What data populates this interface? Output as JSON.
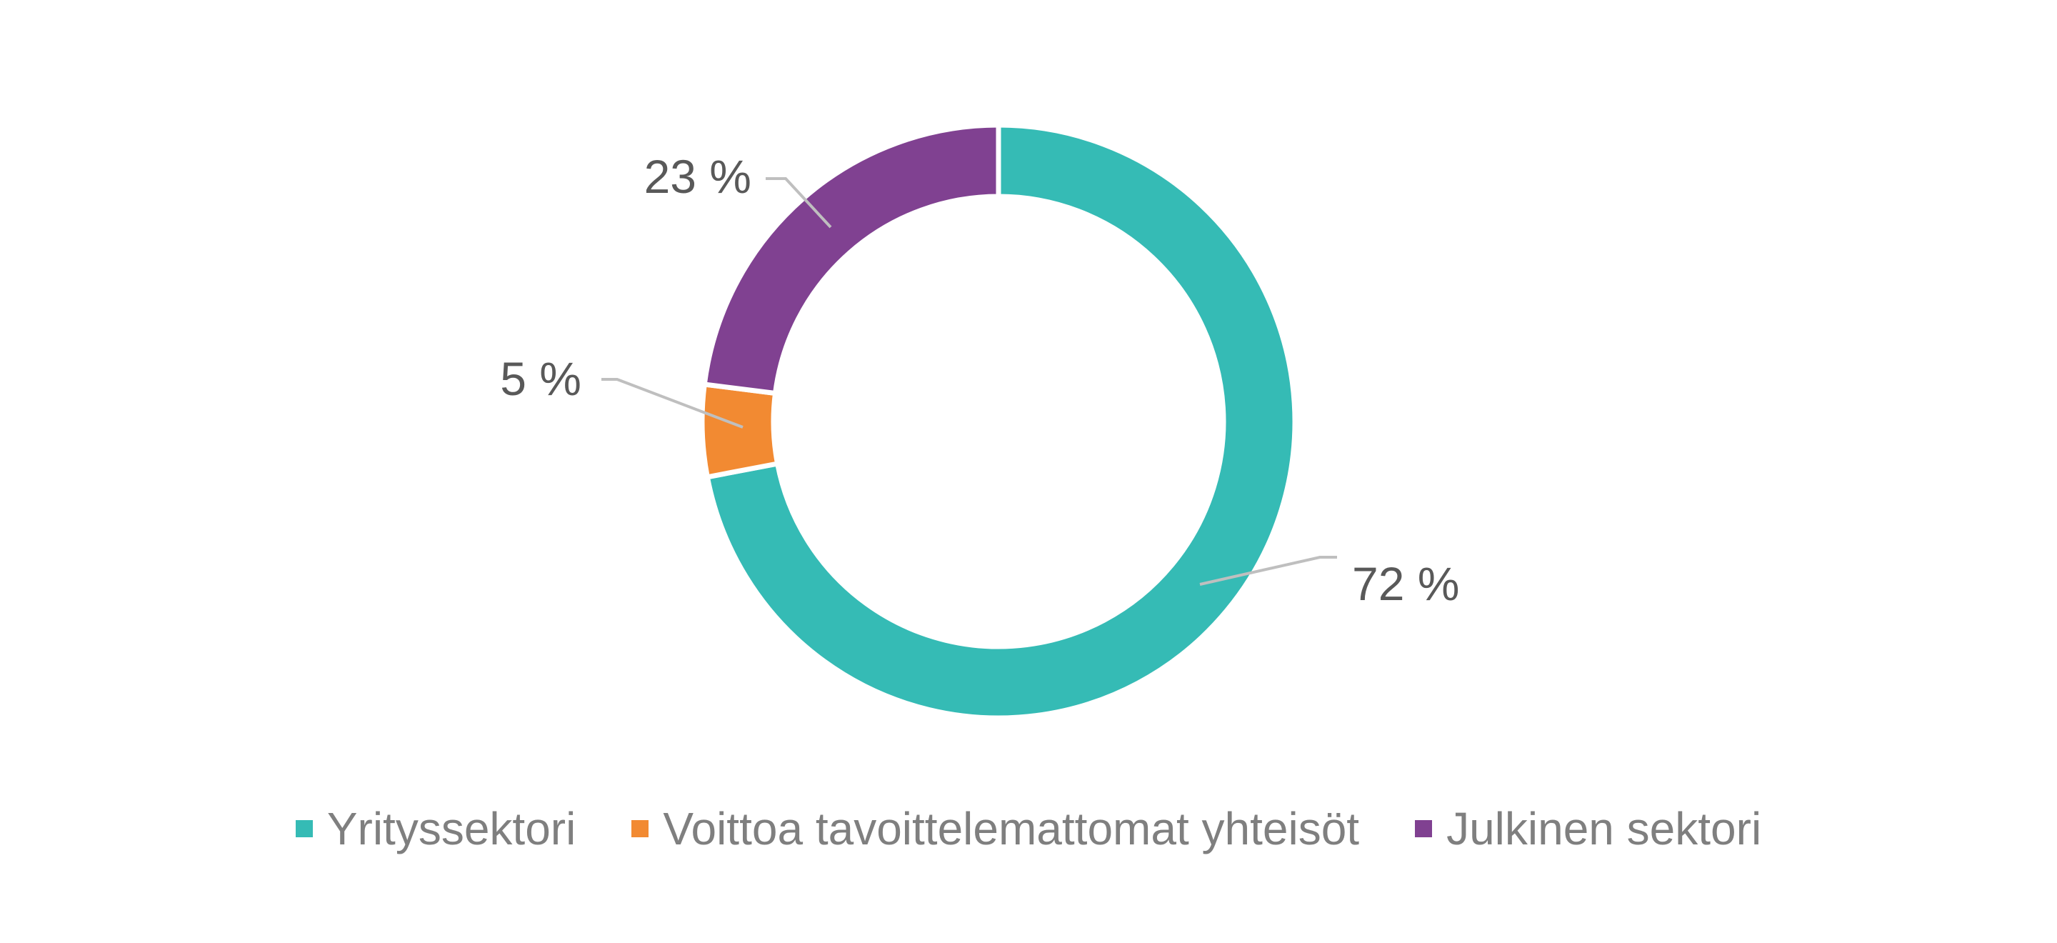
{
  "chart_data": {
    "type": "pie",
    "subtype": "donut",
    "title": "",
    "categories": [
      "Yrityssektori",
      "Voittoa tavoittelemattomat yhteisöt",
      "Julkinen sektori"
    ],
    "values": [
      72,
      5,
      23
    ],
    "unit": "%",
    "data_labels": [
      "72 %",
      "5 %",
      "23 %"
    ],
    "colors": [
      "#35BBB5",
      "#F28A32",
      "#804191"
    ],
    "legend_position": "bottom",
    "start_angle": "top",
    "direction": "clockwise"
  },
  "legend": {
    "items": [
      {
        "label": "Yrityssektori",
        "color": "#35BBB5"
      },
      {
        "label": "Voittoa tavoittelemattomat yhteisöt",
        "color": "#F28A32"
      },
      {
        "label": "Julkinen sektori",
        "color": "#804191"
      }
    ]
  }
}
